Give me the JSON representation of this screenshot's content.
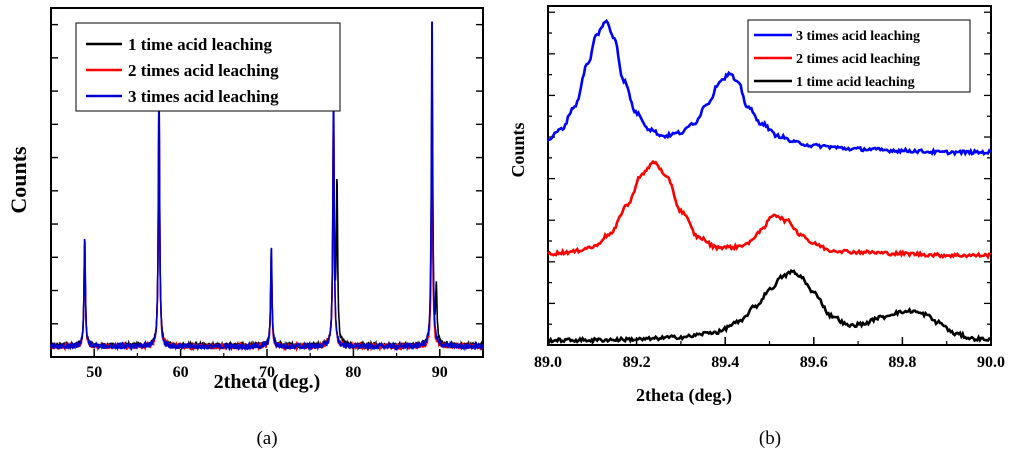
{
  "chart_data": [
    {
      "type": "line",
      "caption": "(a)",
      "xlabel": "2theta (deg.)",
      "ylabel": "Counts",
      "xlim": [
        45,
        95
      ],
      "ylim": [
        0,
        100
      ],
      "xticks": [
        50,
        60,
        70,
        80,
        90
      ],
      "xtick_labels": [
        "50",
        "60",
        "70",
        "80",
        "90"
      ],
      "y_tick_labels_shown": false,
      "legend_position": "top-left",
      "baseline": 3,
      "series": [
        {
          "name": "1 time acid leaching",
          "color": "#000000",
          "peaks": [
            [
              48.9,
              30
            ],
            [
              57.5,
              72
            ],
            [
              70.5,
              26
            ],
            [
              77.7,
              65
            ],
            [
              78.1,
              46
            ],
            [
              89.1,
              78
            ],
            [
              89.6,
              16
            ]
          ]
        },
        {
          "name": "2 times acid leaching",
          "color": "#ff0000",
          "peaks": [
            [
              48.9,
              29
            ],
            [
              57.5,
              71
            ],
            [
              70.5,
              25
            ],
            [
              77.7,
              70
            ],
            [
              89.1,
              61
            ]
          ]
        },
        {
          "name": "3 times acid leaching",
          "color": "#0000cc",
          "peaks": [
            [
              48.9,
              32
            ],
            [
              57.5,
              75
            ],
            [
              70.5,
              29
            ],
            [
              77.7,
              74
            ],
            [
              89.1,
              97
            ]
          ]
        }
      ]
    },
    {
      "type": "line",
      "caption": "(b)",
      "xlabel": "2theta (deg.)",
      "ylabel": "Counts",
      "xlim": [
        89.0,
        90.0
      ],
      "ylim": [
        0,
        100
      ],
      "xticks": [
        89.0,
        89.2,
        89.4,
        89.6,
        89.8,
        90.0
      ],
      "xtick_labels": [
        "89.0",
        "89.2",
        "89.4",
        "89.6",
        "89.8",
        "90.0"
      ],
      "y_tick_labels_shown": false,
      "legend_position": "top-right",
      "series": [
        {
          "name": "3 times acid leaching",
          "color": "#0000ff",
          "x": [
            89.0,
            89.03,
            89.06,
            89.09,
            89.11,
            89.13,
            89.15,
            89.17,
            89.2,
            89.23,
            89.26,
            89.3,
            89.33,
            89.36,
            89.39,
            89.41,
            89.43,
            89.45,
            89.48,
            89.52,
            89.56,
            89.6,
            89.7,
            89.8,
            89.9,
            90.0
          ],
          "y": [
            62,
            65,
            72,
            85,
            94,
            98,
            93,
            80,
            70,
            65,
            63,
            64,
            67,
            73,
            80,
            82,
            79,
            72,
            67,
            63,
            61,
            60,
            59,
            58.5,
            58,
            58
          ]
        },
        {
          "name": "2 times acid leaching",
          "color": "#ff0000",
          "x": [
            89.0,
            89.05,
            89.1,
            89.14,
            89.18,
            89.21,
            89.24,
            89.27,
            89.3,
            89.34,
            89.38,
            89.42,
            89.45,
            89.48,
            89.51,
            89.54,
            89.57,
            89.6,
            89.64,
            89.7,
            89.8,
            89.9,
            90.0
          ],
          "y": [
            27,
            27.5,
            29,
            33,
            42,
            51,
            55,
            50,
            40,
            32,
            29,
            29,
            30,
            34,
            39,
            37,
            33,
            30,
            28,
            27.5,
            27,
            26.5,
            26.5
          ]
        },
        {
          "name": "1 time acid leaching",
          "color": "#000000",
          "x": [
            89.0,
            89.1,
            89.2,
            89.3,
            89.38,
            89.43,
            89.47,
            89.5,
            89.53,
            89.55,
            89.57,
            89.6,
            89.64,
            89.68,
            89.71,
            89.75,
            89.79,
            89.82,
            89.85,
            89.88,
            89.92,
            89.96,
            90.0
          ],
          "y": [
            0.5,
            0.6,
            0.8,
            1.5,
            3,
            6,
            11,
            16,
            20,
            21.5,
            20,
            15,
            8,
            5,
            5.5,
            7.5,
            9,
            9.5,
            8.5,
            6,
            2.5,
            1,
            0.8
          ]
        }
      ]
    }
  ]
}
